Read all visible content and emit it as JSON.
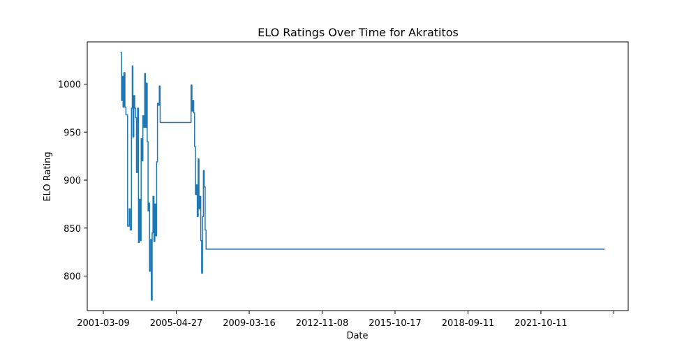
{
  "chart_data": {
    "type": "line",
    "title": "ELO Ratings Over Time for Akratitos",
    "xlabel": "Date",
    "ylabel": "ELO Rating",
    "x_ticks": [
      "2001-03-09",
      "2005-04-27",
      "2009-03-16",
      "2012-11-08",
      "2015-10-17",
      "2018-09-11",
      "2021-10-11",
      ""
    ],
    "y_ticks": [
      800,
      850,
      900,
      950,
      1000
    ],
    "ylim": [
      764,
      1044
    ],
    "grid": false,
    "series": [
      {
        "color": "#1f77b4",
        "x": [
          "2002-01-01",
          "2002-01-20",
          "2002-02-01",
          "2002-02-15",
          "2002-03-01",
          "2002-03-20",
          "2002-04-05",
          "2002-04-20",
          "2002-05-05",
          "2002-06-01",
          "2002-06-20",
          "2002-07-10",
          "2002-07-25",
          "2002-08-05",
          "2002-08-20",
          "2002-09-05",
          "2002-09-20",
          "2002-10-05",
          "2002-10-25",
          "2002-11-10",
          "2002-11-25",
          "2002-12-10",
          "2002-12-25",
          "2003-01-10",
          "2003-01-25",
          "2003-02-10",
          "2003-02-25",
          "2003-03-10",
          "2003-03-25",
          "2003-04-10",
          "2003-04-25",
          "2003-05-10",
          "2003-05-20",
          "2003-06-01",
          "2003-06-20",
          "2003-07-05",
          "2003-07-20",
          "2003-08-05",
          "2003-08-20",
          "2003-09-05",
          "2003-09-20",
          "2003-10-05",
          "2003-10-20",
          "2003-11-05",
          "2003-11-20",
          "2003-12-05",
          "2003-12-20",
          "2004-01-05",
          "2004-01-20",
          "2004-02-05",
          "2004-02-20",
          "2004-03-05",
          "2004-03-20",
          "2004-04-05",
          "2004-04-20",
          "2004-05-05",
          "2004-05-20",
          "2004-06-01",
          "2005-04-27",
          "2005-05-10",
          "2005-05-25",
          "2005-06-10",
          "2005-06-25",
          "2005-07-10",
          "2005-07-25",
          "2005-08-10",
          "2005-08-25",
          "2005-09-10",
          "2005-09-25",
          "2005-10-10",
          "2005-10-25",
          "2005-11-10",
          "2005-11-25",
          "2005-12-10",
          "2005-12-25",
          "2006-01-10",
          "2006-01-25",
          "2006-02-10",
          "2006-02-25",
          "2006-03-10",
          "2006-03-25",
          "2006-04-10",
          "2006-04-25",
          "2006-05-10",
          "2006-06-01",
          "2024-12-31"
        ],
        "y": [
          1033,
          983,
          1008,
          976,
          1012,
          976,
          968,
          968,
          852,
          870,
          848,
          975,
          1019,
          945,
          988,
          975,
          965,
          908,
          975,
          835,
          880,
          837,
          943,
          920,
          967,
          955,
          1011,
          955,
          1001,
          940,
          868,
          876,
          805,
          838,
          775,
          845,
          883,
          836,
          875,
          842,
          919,
          980,
          978,
          998,
          960,
          960,
          960,
          960,
          960,
          960,
          960,
          960,
          960,
          960,
          960,
          960,
          960,
          960,
          960,
          999,
          972,
          983,
          970,
          935,
          885,
          895,
          862,
          922,
          870,
          883,
          837,
          803,
          862,
          910,
          893,
          848,
          828,
          828,
          828,
          828,
          828,
          828,
          828,
          828,
          828,
          828
        ]
      }
    ]
  }
}
